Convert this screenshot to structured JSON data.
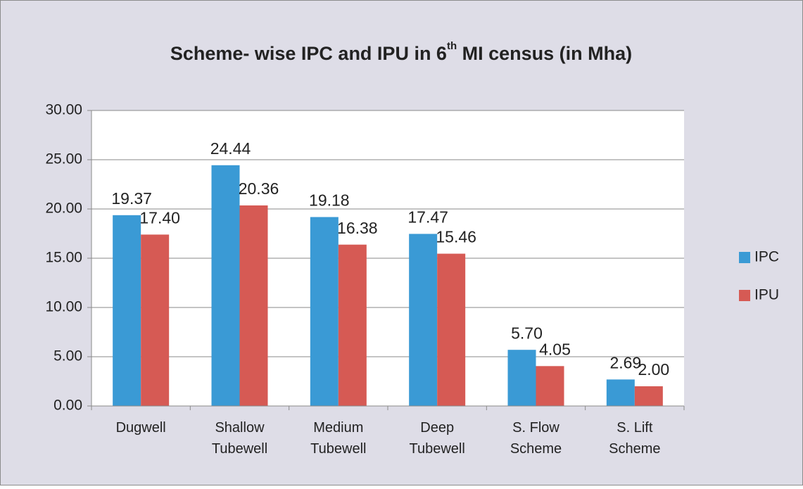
{
  "chart_data": {
    "type": "bar",
    "title": [
      "Scheme- wise IPC and IPU in 6",
      "th",
      " MI census (in Mha)"
    ],
    "categories": [
      [
        "Dugwell"
      ],
      [
        "Shallow",
        "Tubewell"
      ],
      [
        "Medium",
        "Tubewell"
      ],
      [
        "Deep",
        "Tubewell"
      ],
      [
        "S. Flow",
        "Scheme"
      ],
      [
        "S. Lift",
        "Scheme"
      ]
    ],
    "series": [
      {
        "name": "IPC",
        "color": "#3a9ad5",
        "values": [
          19.37,
          24.44,
          19.18,
          17.47,
          5.7,
          2.69
        ],
        "value_labels": [
          "19.37",
          "24.44",
          "19.18",
          "17.47",
          "5.70",
          "2.69"
        ]
      },
      {
        "name": "IPU",
        "color": "#d65a54",
        "values": [
          17.4,
          20.36,
          16.38,
          15.46,
          4.05,
          2.0
        ],
        "value_labels": [
          "17.40",
          "20.36",
          "16.38",
          "15.46",
          "4.05",
          "2.00"
        ]
      }
    ],
    "ylim": [
      0,
      30
    ],
    "yticks": [
      {
        "value": 0,
        "label": "0.00"
      },
      {
        "value": 5,
        "label": "5.00"
      },
      {
        "value": 10,
        "label": "10.00"
      },
      {
        "value": 15,
        "label": "15.00"
      },
      {
        "value": 20,
        "label": "20.00"
      },
      {
        "value": 25,
        "label": "25.00"
      },
      {
        "value": 30,
        "label": "30.00"
      }
    ],
    "grid": true,
    "legend": "right"
  }
}
